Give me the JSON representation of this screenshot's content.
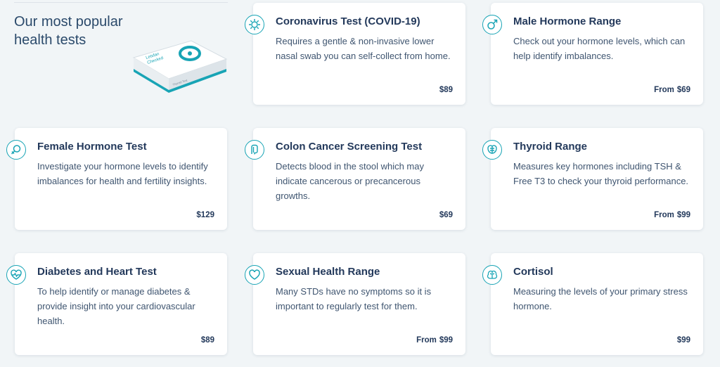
{
  "intro": {
    "title": "Our most popular health tests"
  },
  "kit": {
    "brand_line1": "Letsfan",
    "brand_line2": "Checked",
    "box_label": "Thyroid Test"
  },
  "cards": [
    {
      "title": "Coronavirus Test (COVID-19)",
      "description": "Requires a gentle & non-invasive lower nasal swab you can self-collect from home.",
      "price_prefix": "",
      "price": "$89",
      "icon": "virus-icon"
    },
    {
      "title": "Male Hormone Range",
      "description": "Check out your hormone levels, which can help identify imbalances.",
      "price_prefix": "From",
      "price": "$69",
      "icon": "male-symbol-icon"
    },
    {
      "title": "Female Hormone Test",
      "description": "Investigate your hormone levels to identify imbalances for health and fertility insights.",
      "price_prefix": "",
      "price": "$129",
      "icon": "female-symbol-icon"
    },
    {
      "title": "Colon Cancer Screening Test",
      "description": "Detects blood in the stool which may indicate cancerous or precancerous growths.",
      "price_prefix": "",
      "price": "$69",
      "icon": "colon-icon"
    },
    {
      "title": "Thyroid Range",
      "description": "Measures key hormones including TSH & Free T3 to check your thyroid performance.",
      "price_prefix": "From",
      "price": "$99",
      "icon": "thyroid-icon"
    },
    {
      "title": "Diabetes and Heart Test",
      "description": "To help identify or manage diabetes & provide insight into your cardiovascular health.",
      "price_prefix": "",
      "price": "$89",
      "icon": "heart-pulse-icon"
    },
    {
      "title": "Sexual Health Range",
      "description": "Many STDs have no symptoms so it is important to regularly test for them.",
      "price_prefix": "From",
      "price": "$99",
      "icon": "heart-icon"
    },
    {
      "title": "Cortisol",
      "description": "Measuring the levels of your primary stress hormone.",
      "price_prefix": "",
      "price": "$99",
      "icon": "brain-icon"
    }
  ],
  "colors": {
    "accent": "#18a4b5",
    "title": "#23395b",
    "background": "#f1f5f7"
  }
}
